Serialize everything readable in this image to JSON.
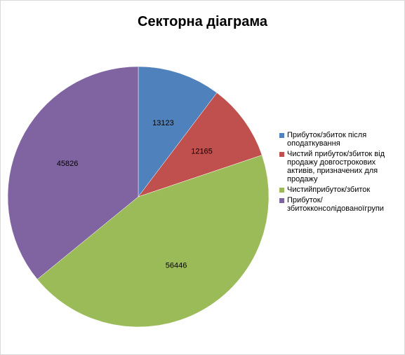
{
  "chart_data": {
    "type": "pie",
    "title": "Секторна діаграма",
    "start_angle_deg": 0,
    "direction": "clockwise",
    "legend_position": "right",
    "slices": [
      {
        "name": "Прибуток/збиток після оподаткування",
        "value": 13123,
        "color": "#4f81bd"
      },
      {
        "name": "Чистий прибуток/збиток від продажу довгострокових активів, призначених для продажу",
        "value": 12165,
        "color": "#c0504d"
      },
      {
        "name": "Чистийприбуток/збиток",
        "value": 56446,
        "color": "#9bbb59"
      },
      {
        "name": "Прибуток/ збитокконсолідованоїгрупи",
        "value": 45826,
        "color": "#8064a2"
      }
    ]
  }
}
